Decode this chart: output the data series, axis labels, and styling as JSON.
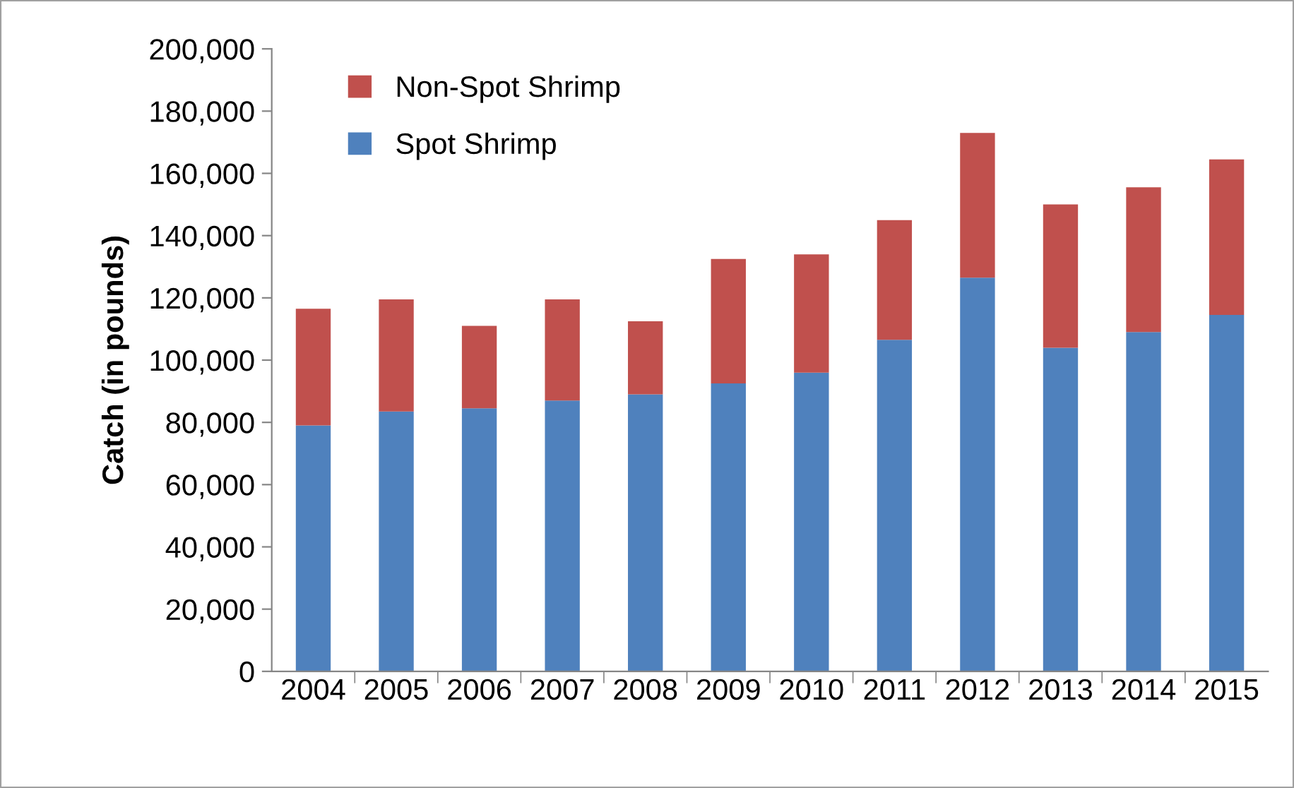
{
  "chart_data": {
    "type": "bar",
    "stacked": true,
    "ylabel": "Catch (in pounds)",
    "categories": [
      "2004",
      "2005",
      "2006",
      "2007",
      "2008",
      "2009",
      "2010",
      "2011",
      "2012",
      "2013",
      "2014",
      "2015"
    ],
    "series": [
      {
        "name": "Spot Shrimp",
        "color": "#4f81bd",
        "values": [
          79000,
          83500,
          84500,
          87000,
          89000,
          92500,
          96000,
          106500,
          126500,
          104000,
          109000,
          114500
        ]
      },
      {
        "name": "Non-Spot Shrimp",
        "color": "#c0504d",
        "values": [
          37500,
          36000,
          26500,
          32500,
          23500,
          40000,
          38000,
          38500,
          46500,
          46000,
          46500,
          50000
        ]
      }
    ],
    "ylim": [
      0,
      200000
    ],
    "yticks": [
      {
        "value": 0,
        "label": "0"
      },
      {
        "value": 20000,
        "label": "20,000"
      },
      {
        "value": 40000,
        "label": "40,000"
      },
      {
        "value": 60000,
        "label": "60,000"
      },
      {
        "value": 80000,
        "label": "80,000"
      },
      {
        "value": 100000,
        "label": "100,000"
      },
      {
        "value": 120000,
        "label": "120,000"
      },
      {
        "value": 140000,
        "label": "140,000"
      },
      {
        "value": 160000,
        "label": "160,000"
      },
      {
        "value": 180000,
        "label": "180,000"
      },
      {
        "value": 200000,
        "label": "200,000"
      }
    ],
    "grid": false,
    "legend": "top left"
  }
}
